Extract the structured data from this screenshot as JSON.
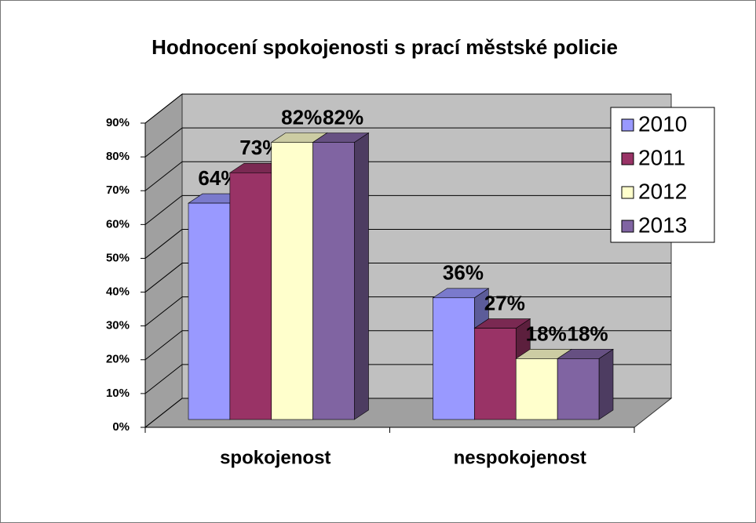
{
  "chart_data": {
    "type": "bar3d",
    "title": "Hodnocení spokojenosti s prací městské policie",
    "categories": [
      "spokojenost",
      "nespokojenost"
    ],
    "series": [
      {
        "name": "2010",
        "color": "#9999ff",
        "values": [
          64,
          36
        ],
        "value_labels": [
          "64%",
          "36%"
        ]
      },
      {
        "name": "2011",
        "color": "#993366",
        "values": [
          73,
          27
        ],
        "value_labels": [
          "73%",
          "27%"
        ]
      },
      {
        "name": "2012",
        "color": "#ffffcc",
        "values": [
          82,
          18
        ],
        "value_labels": [
          "82%",
          "18%"
        ]
      },
      {
        "name": "2013",
        "color": "#8064a2",
        "values": [
          82,
          18
        ],
        "value_labels": [
          "82%",
          "18%"
        ]
      }
    ],
    "ylim": [
      0,
      90
    ],
    "yticks": [
      {
        "value": 0,
        "label": "0%"
      },
      {
        "value": 10,
        "label": "10%"
      },
      {
        "value": 20,
        "label": "20%"
      },
      {
        "value": 30,
        "label": "30%"
      },
      {
        "value": 40,
        "label": "40%"
      },
      {
        "value": 50,
        "label": "50%"
      },
      {
        "value": 60,
        "label": "60%"
      },
      {
        "value": 70,
        "label": "70%"
      },
      {
        "value": 80,
        "label": "80%"
      },
      {
        "value": 90,
        "label": "90%"
      }
    ],
    "grid": true,
    "legend": "right"
  }
}
